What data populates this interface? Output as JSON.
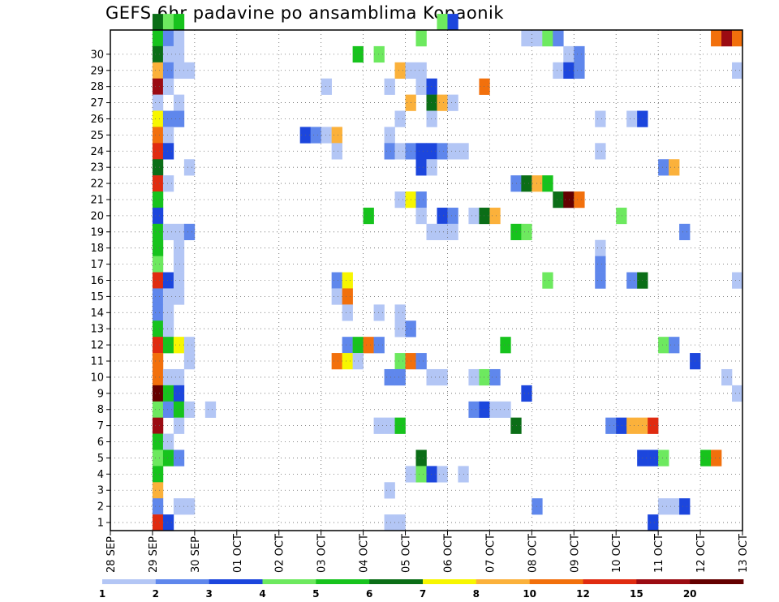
{
  "chart_data": {
    "type": "heatmap",
    "title": "GEFS 6hr padavine po ansamblima Kopaonik",
    "x_ticks": [
      "28 SEP",
      "29 SEP",
      "30 SEP",
      "01 OCT",
      "02 OCT",
      "03 OCT",
      "04 OCT",
      "05 OCT",
      "06 OCT",
      "07 OCT",
      "08 OCT",
      "09 OCT",
      "10 OCT",
      "11 OCT",
      "12 OCT",
      "13 OCT"
    ],
    "x_range_days": [
      0,
      15
    ],
    "y_ticks": [
      1,
      2,
      3,
      4,
      5,
      6,
      7,
      8,
      9,
      10,
      11,
      12,
      13,
      14,
      15,
      16,
      17,
      18,
      19,
      20,
      21,
      22,
      23,
      24,
      25,
      26,
      27,
      28,
      29,
      30
    ],
    "y_range": [
      0,
      30
    ],
    "members": 31,
    "time_step_days": 0.25,
    "grid": true,
    "colorbar": {
      "labels": [
        "1",
        "2",
        "3",
        "4",
        "5",
        "6",
        "7",
        "8",
        "10",
        "12",
        "15",
        "20"
      ],
      "colors": [
        "#b3c6f5",
        "#5f87ec",
        "#1c46dd",
        "#6de95f",
        "#17c31d",
        "#0b6e17",
        "#f7f600",
        "#fbb13b",
        "#f2700c",
        "#e02b10",
        "#9b0b12",
        "#640000"
      ]
    },
    "cells": [
      [
        30,
        1.0,
        5
      ],
      [
        30,
        1.25,
        3
      ],
      [
        30,
        1.5,
        4
      ],
      [
        30,
        7.75,
        3
      ],
      [
        30,
        8.0,
        2
      ],
      [
        29,
        1.0,
        4
      ],
      [
        29,
        1.25,
        1
      ],
      [
        29,
        1.5,
        0
      ],
      [
        29,
        7.25,
        3
      ],
      [
        29,
        9.75,
        0
      ],
      [
        29,
        10.0,
        0
      ],
      [
        29,
        10.25,
        3
      ],
      [
        29,
        10.5,
        1
      ],
      [
        29,
        14.25,
        8
      ],
      [
        29,
        14.5,
        10
      ],
      [
        29,
        14.75,
        8
      ],
      [
        28,
        1.0,
        5
      ],
      [
        28,
        1.25,
        0
      ],
      [
        28,
        1.5,
        0
      ],
      [
        28,
        5.75,
        4
      ],
      [
        28,
        6.25,
        3
      ],
      [
        28,
        10.75,
        0
      ],
      [
        28,
        11.0,
        1
      ],
      [
        27,
        1.0,
        7
      ],
      [
        27,
        1.25,
        1
      ],
      [
        27,
        1.5,
        0
      ],
      [
        27,
        1.75,
        0
      ],
      [
        27,
        6.75,
        7
      ],
      [
        27,
        7.0,
        0
      ],
      [
        27,
        7.25,
        0
      ],
      [
        27,
        10.5,
        0
      ],
      [
        27,
        10.75,
        2
      ],
      [
        27,
        11.0,
        1
      ],
      [
        27,
        14.75,
        0
      ],
      [
        26,
        1.0,
        10
      ],
      [
        26,
        1.25,
        0
      ],
      [
        26,
        5.0,
        0
      ],
      [
        26,
        6.5,
        0
      ],
      [
        26,
        7.25,
        0
      ],
      [
        26,
        7.5,
        2
      ],
      [
        26,
        8.75,
        8
      ],
      [
        25,
        1.0,
        0
      ],
      [
        25,
        1.5,
        0
      ],
      [
        25,
        7.0,
        7
      ],
      [
        25,
        7.5,
        5
      ],
      [
        25,
        7.75,
        7
      ],
      [
        25,
        8.0,
        0
      ],
      [
        24,
        1.0,
        6
      ],
      [
        24,
        1.25,
        1
      ],
      [
        24,
        1.5,
        1
      ],
      [
        24,
        6.75,
        0
      ],
      [
        24,
        7.5,
        0
      ],
      [
        24,
        11.5,
        0
      ],
      [
        24,
        12.25,
        0
      ],
      [
        24,
        12.5,
        2
      ],
      [
        23,
        1.0,
        8
      ],
      [
        23,
        1.25,
        0
      ],
      [
        23,
        4.5,
        2
      ],
      [
        23,
        4.75,
        1
      ],
      [
        23,
        5.0,
        0
      ],
      [
        23,
        5.25,
        7
      ],
      [
        23,
        6.5,
        0
      ],
      [
        22,
        1.0,
        9
      ],
      [
        22,
        1.25,
        2
      ],
      [
        22,
        5.25,
        0
      ],
      [
        22,
        6.5,
        1
      ],
      [
        22,
        6.75,
        0
      ],
      [
        22,
        7.0,
        1
      ],
      [
        22,
        7.25,
        2
      ],
      [
        22,
        7.5,
        2
      ],
      [
        22,
        7.75,
        1
      ],
      [
        22,
        8.0,
        0
      ],
      [
        22,
        8.25,
        0
      ],
      [
        22,
        11.5,
        0
      ],
      [
        21,
        1.0,
        5
      ],
      [
        21,
        1.75,
        0
      ],
      [
        21,
        7.25,
        2
      ],
      [
        21,
        7.5,
        0
      ],
      [
        21,
        13.0,
        1
      ],
      [
        21,
        13.25,
        7
      ],
      [
        20,
        1.0,
        9
      ],
      [
        20,
        1.25,
        0
      ],
      [
        20,
        9.5,
        1
      ],
      [
        20,
        9.75,
        5
      ],
      [
        20,
        10.0,
        7
      ],
      [
        20,
        10.25,
        4
      ],
      [
        19,
        1.0,
        4
      ],
      [
        19,
        6.75,
        0
      ],
      [
        19,
        7.0,
        6
      ],
      [
        19,
        7.25,
        1
      ],
      [
        19,
        10.5,
        5
      ],
      [
        19,
        10.75,
        11
      ],
      [
        19,
        11.0,
        8
      ],
      [
        18,
        1.0,
        2
      ],
      [
        18,
        6.0,
        4
      ],
      [
        18,
        7.25,
        0
      ],
      [
        18,
        7.75,
        2
      ],
      [
        18,
        8.0,
        1
      ],
      [
        18,
        8.5,
        0
      ],
      [
        18,
        8.75,
        5
      ],
      [
        18,
        9.0,
        7
      ],
      [
        18,
        12.0,
        3
      ],
      [
        17,
        1.0,
        4
      ],
      [
        17,
        1.25,
        0
      ],
      [
        17,
        1.5,
        0
      ],
      [
        17,
        1.75,
        1
      ],
      [
        17,
        7.5,
        0
      ],
      [
        17,
        7.75,
        0
      ],
      [
        17,
        8.0,
        0
      ],
      [
        17,
        9.5,
        4
      ],
      [
        17,
        9.75,
        3
      ],
      [
        17,
        13.5,
        1
      ],
      [
        16,
        1.0,
        4
      ],
      [
        16,
        1.5,
        0
      ],
      [
        16,
        11.5,
        0
      ],
      [
        15,
        1.0,
        3
      ],
      [
        15,
        1.5,
        0
      ],
      [
        15,
        11.5,
        1
      ],
      [
        14,
        1.0,
        9
      ],
      [
        14,
        1.25,
        2
      ],
      [
        14,
        1.5,
        0
      ],
      [
        14,
        5.25,
        1
      ],
      [
        14,
        5.5,
        6
      ],
      [
        14,
        10.25,
        3
      ],
      [
        14,
        11.5,
        1
      ],
      [
        14,
        12.25,
        1
      ],
      [
        14,
        12.5,
        5
      ],
      [
        14,
        14.75,
        0
      ],
      [
        13,
        1.0,
        1
      ],
      [
        13,
        1.25,
        0
      ],
      [
        13,
        1.5,
        0
      ],
      [
        13,
        5.25,
        0
      ],
      [
        13,
        5.5,
        8
      ],
      [
        12,
        1.0,
        1
      ],
      [
        12,
        1.25,
        0
      ],
      [
        12,
        5.5,
        0
      ],
      [
        12,
        6.25,
        0
      ],
      [
        12,
        6.75,
        0
      ],
      [
        11,
        1.0,
        4
      ],
      [
        11,
        1.25,
        0
      ],
      [
        11,
        6.75,
        0
      ],
      [
        11,
        7.0,
        1
      ],
      [
        10,
        1.0,
        9
      ],
      [
        10,
        1.25,
        4
      ],
      [
        10,
        1.5,
        6
      ],
      [
        10,
        1.75,
        0
      ],
      [
        10,
        5.5,
        1
      ],
      [
        10,
        5.75,
        4
      ],
      [
        10,
        6.0,
        8
      ],
      [
        10,
        6.25,
        1
      ],
      [
        10,
        9.25,
        4
      ],
      [
        10,
        13.0,
        3
      ],
      [
        10,
        13.25,
        1
      ],
      [
        9,
        1.0,
        8
      ],
      [
        9,
        1.75,
        0
      ],
      [
        9,
        5.25,
        8
      ],
      [
        9,
        5.5,
        6
      ],
      [
        9,
        5.75,
        0
      ],
      [
        9,
        6.75,
        3
      ],
      [
        9,
        7.0,
        8
      ],
      [
        9,
        7.25,
        1
      ],
      [
        9,
        13.75,
        2
      ],
      [
        8,
        1.0,
        8
      ],
      [
        8,
        1.25,
        0
      ],
      [
        8,
        1.5,
        0
      ],
      [
        8,
        6.5,
        1
      ],
      [
        8,
        6.75,
        1
      ],
      [
        8,
        7.5,
        0
      ],
      [
        8,
        7.75,
        0
      ],
      [
        8,
        8.5,
        0
      ],
      [
        8,
        8.75,
        3
      ],
      [
        8,
        9.0,
        1
      ],
      [
        8,
        14.5,
        0
      ],
      [
        7,
        1.0,
        11
      ],
      [
        7,
        1.25,
        4
      ],
      [
        7,
        1.5,
        2
      ],
      [
        7,
        9.75,
        2
      ],
      [
        7,
        14.75,
        0
      ],
      [
        6,
        1.0,
        3
      ],
      [
        6,
        1.25,
        1
      ],
      [
        6,
        1.5,
        4
      ],
      [
        6,
        1.75,
        0
      ],
      [
        6,
        2.25,
        0
      ],
      [
        6,
        8.5,
        1
      ],
      [
        6,
        8.75,
        2
      ],
      [
        6,
        9.0,
        0
      ],
      [
        6,
        9.25,
        0
      ],
      [
        5,
        1.0,
        10
      ],
      [
        5,
        1.5,
        0
      ],
      [
        5,
        6.25,
        0
      ],
      [
        5,
        6.5,
        0
      ],
      [
        5,
        6.75,
        4
      ],
      [
        5,
        9.5,
        5
      ],
      [
        5,
        11.75,
        1
      ],
      [
        5,
        12.0,
        2
      ],
      [
        5,
        12.25,
        7
      ],
      [
        5,
        12.5,
        7
      ],
      [
        5,
        12.75,
        9
      ],
      [
        4,
        1.0,
        4
      ],
      [
        4,
        1.25,
        0
      ],
      [
        3,
        1.0,
        3
      ],
      [
        3,
        1.25,
        4
      ],
      [
        3,
        1.5,
        1
      ],
      [
        3,
        7.25,
        5
      ],
      [
        3,
        12.5,
        2
      ],
      [
        3,
        12.75,
        2
      ],
      [
        3,
        13.0,
        3
      ],
      [
        3,
        14.0,
        4
      ],
      [
        3,
        14.25,
        8
      ],
      [
        2,
        1.0,
        4
      ],
      [
        2,
        7.0,
        0
      ],
      [
        2,
        7.25,
        3
      ],
      [
        2,
        7.5,
        2
      ],
      [
        2,
        7.75,
        0
      ],
      [
        2,
        8.25,
        0
      ],
      [
        1,
        1.0,
        7
      ],
      [
        1,
        6.5,
        0
      ],
      [
        0,
        1.0,
        1
      ],
      [
        0,
        1.5,
        0
      ],
      [
        0,
        1.75,
        0
      ],
      [
        0,
        10.0,
        1
      ],
      [
        0,
        13.0,
        0
      ],
      [
        0,
        13.25,
        0
      ],
      [
        0,
        13.5,
        2
      ],
      [
        -1,
        1.0,
        9
      ],
      [
        -1,
        1.25,
        2
      ],
      [
        -1,
        6.5,
        0
      ],
      [
        -1,
        6.75,
        0
      ],
      [
        -1,
        12.75,
        2
      ]
    ]
  }
}
